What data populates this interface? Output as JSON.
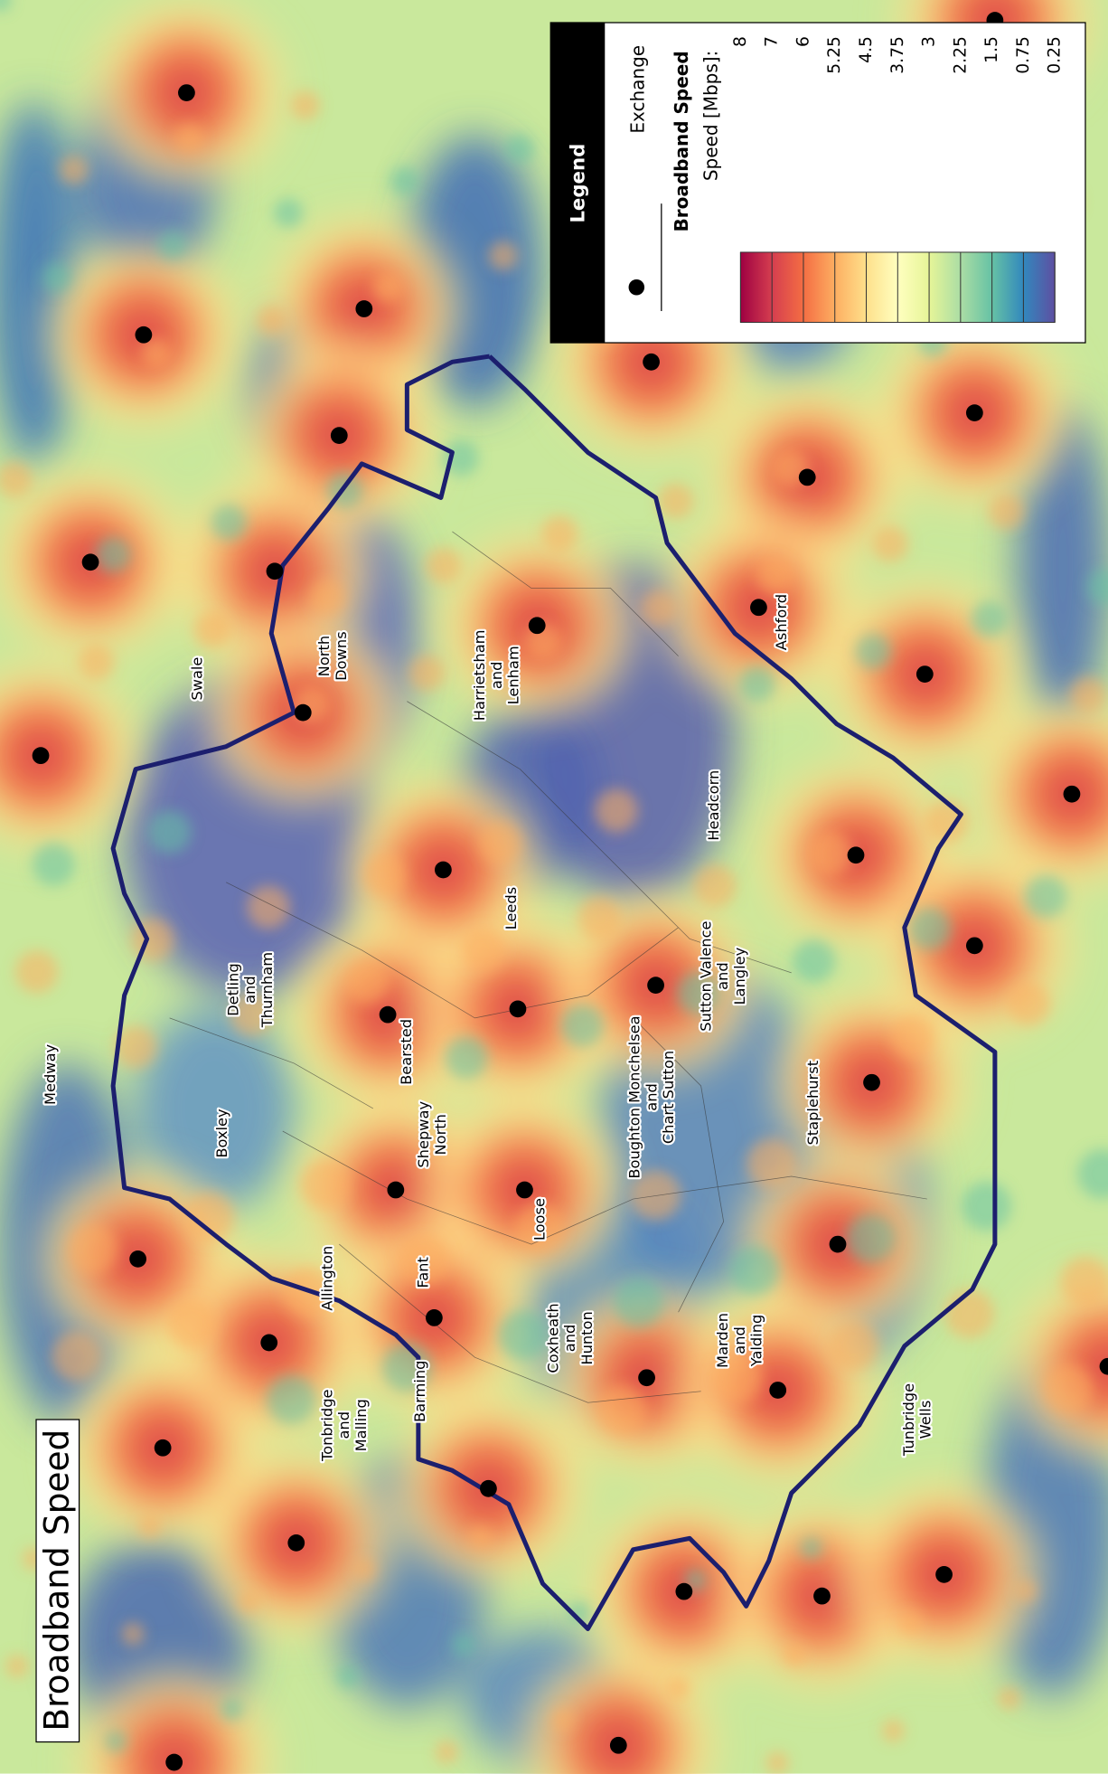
{
  "title": "Broadband Speed",
  "legend": {
    "heading": "Legend",
    "exchange": "Exchange",
    "layer": "Broadband Speed",
    "unit": "Speed [Mbps]:",
    "speeds": [
      8,
      7,
      6,
      5.25,
      4.5,
      3.75,
      3,
      2.25,
      1.5,
      0.75,
      0.25
    ],
    "colors": [
      "#9e0142",
      "#d53e4f",
      "#f46d43",
      "#fdae61",
      "#fee08b",
      "#ffffbf",
      "#e6f598",
      "#abdda4",
      "#66c2a5",
      "#3288bd",
      "#5e4fa2"
    ]
  },
  "places": [
    {
      "lines": [
        "Swale"
      ]
    },
    {
      "lines": [
        "North",
        "Downs"
      ]
    },
    {
      "lines": [
        "Harrietsham",
        "and",
        "Lenham"
      ]
    },
    {
      "lines": [
        "Ashford"
      ]
    },
    {
      "lines": [
        "Medway"
      ]
    },
    {
      "lines": [
        "Detling",
        "and",
        "Thurnham"
      ]
    },
    {
      "lines": [
        "Leeds"
      ]
    },
    {
      "lines": [
        "Headcorn"
      ]
    },
    {
      "lines": [
        "Sutton Valence",
        "and",
        "Langley"
      ]
    },
    {
      "lines": [
        "Bearsted"
      ]
    },
    {
      "lines": [
        "Boxley"
      ]
    },
    {
      "lines": [
        "Shepway",
        "North"
      ]
    },
    {
      "lines": [
        "Boughton Monchelsea",
        "and",
        "Chart Sutton"
      ]
    },
    {
      "lines": [
        "Staplehurst"
      ]
    },
    {
      "lines": [
        "Loose"
      ]
    },
    {
      "lines": [
        "Allington"
      ]
    },
    {
      "lines": [
        "Fant"
      ]
    },
    {
      "lines": [
        "Coxheath",
        "and",
        "Hunton"
      ]
    },
    {
      "lines": [
        "Marden",
        "and",
        "Yalding"
      ]
    },
    {
      "lines": [
        "Tonbridge",
        "and",
        "Malling"
      ]
    },
    {
      "lines": [
        "Barming"
      ]
    },
    {
      "lines": [
        "Tunbridge",
        "Wells"
      ]
    }
  ]
}
